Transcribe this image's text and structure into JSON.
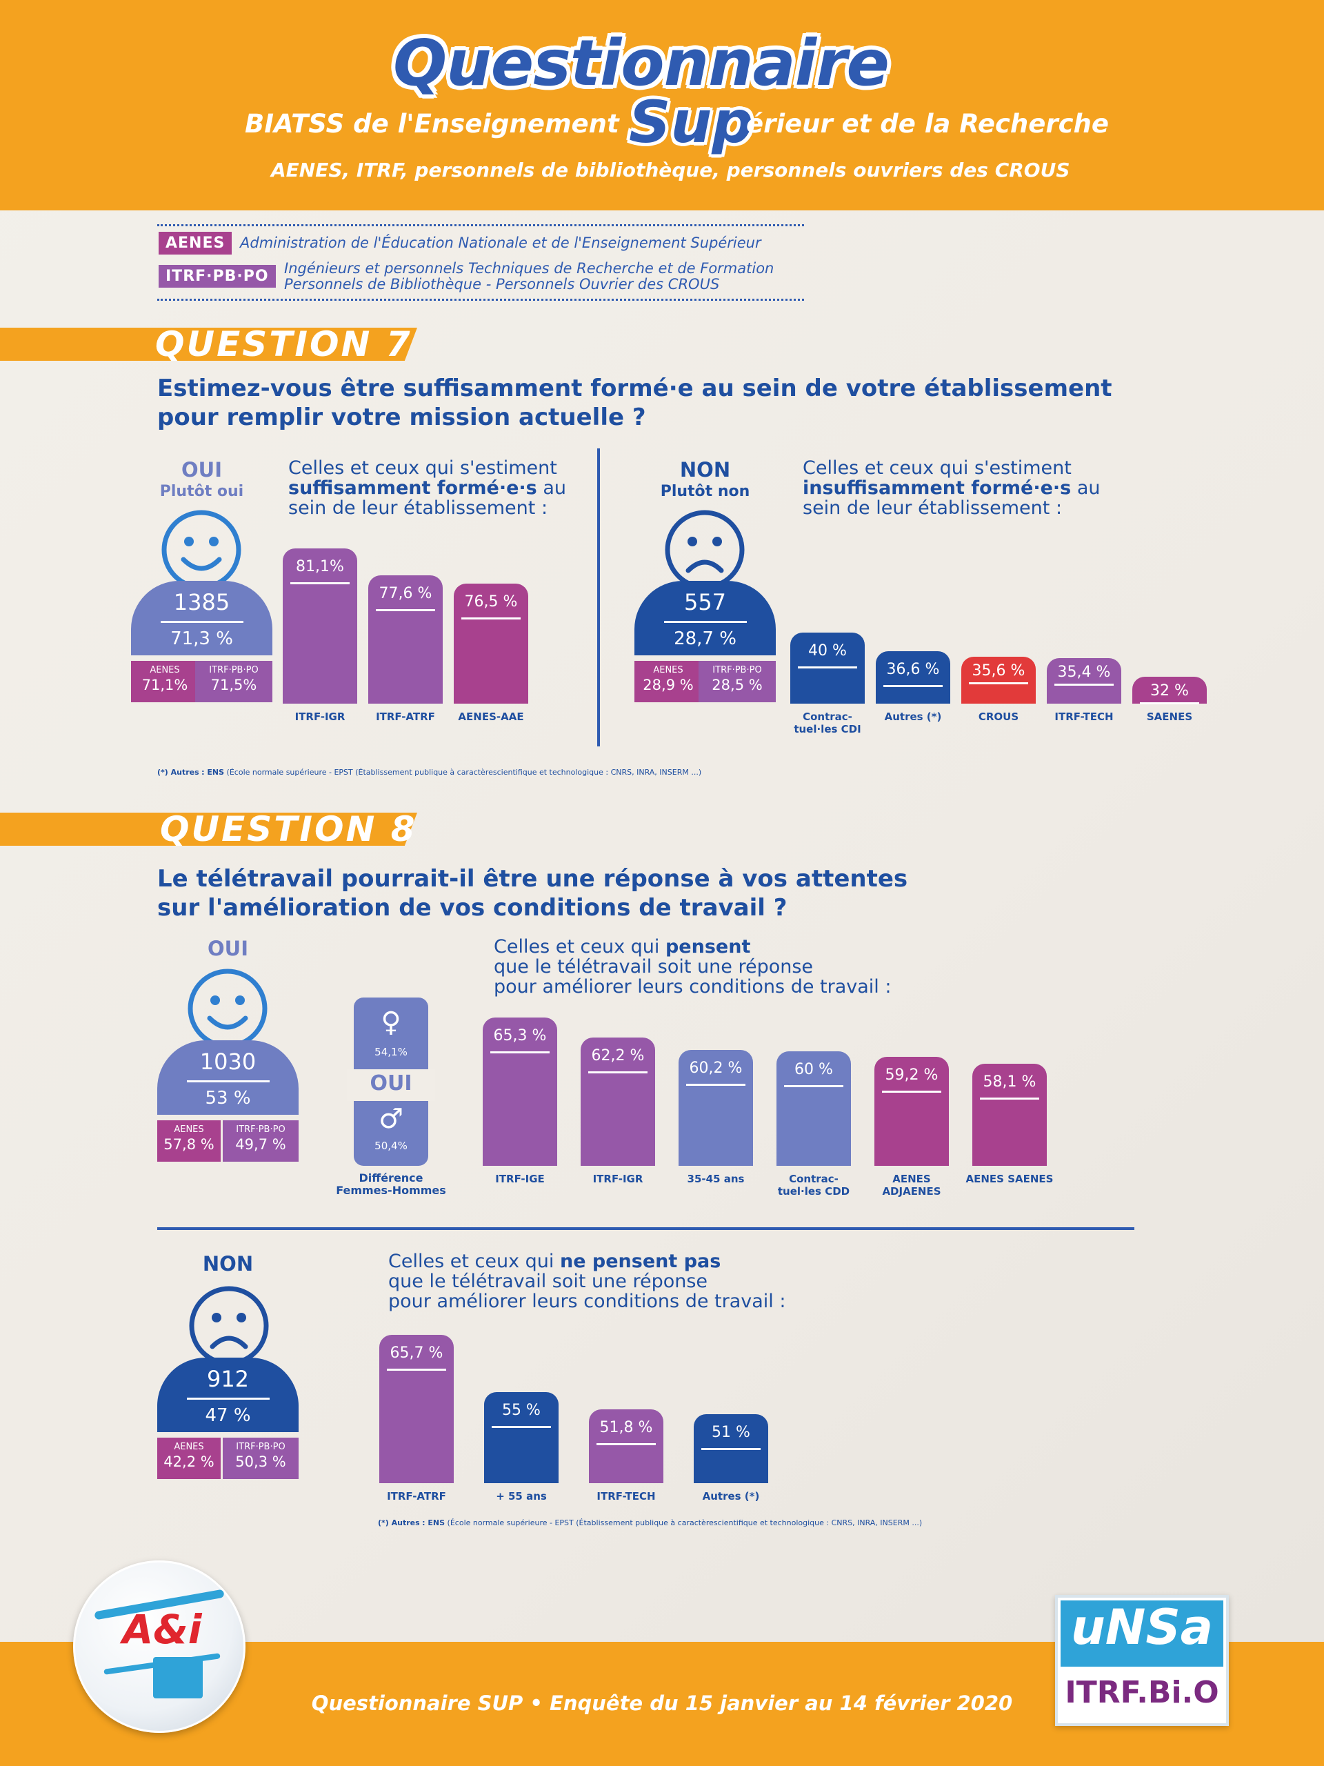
{
  "header": {
    "title": "Questionnaire",
    "subtitle_left": "BIATSS de l'Enseignement",
    "subtitle_sup": "Sup",
    "subtitle_right": "érieur et de la Recherche",
    "line3": "AENES, ITRF, personnels de bibliothèque, personnels ouvriers des CROUS"
  },
  "legend": [
    {
      "tag": "AENES",
      "text": "Administration de l'Éducation Nationale et de l'Enseignement Supérieur"
    },
    {
      "tag": "ITRF·PB·PO",
      "text1": "Ingénieurs et personnels Techniques de Recherche et de Formation",
      "text2": "Personnels de Bibliothèque - Personnels Ouvrier des CROUS"
    }
  ],
  "q7": {
    "label": "QUESTION 7",
    "question1": "Estimez-vous être suffisamment formé·e au sein de votre établissement",
    "question2": "pour remplir votre mission actuelle ?",
    "oui": {
      "head": "OUI",
      "subhead": "Plutôt oui",
      "count": "1385",
      "pct": "71,3 %",
      "sub": [
        {
          "label": "AENES",
          "value": "71,1%"
        },
        {
          "label": "ITRF·PB·PO",
          "value": "71,5%"
        }
      ],
      "desc1": "Celles et ceux qui s'estiment",
      "desc2b": "suffisamment formé·e·s",
      "desc2": " au",
      "desc3": "sein de leur établissement :"
    },
    "non": {
      "head": "NON",
      "subhead": "Plutôt non",
      "count": "557",
      "pct": "28,7 %",
      "sub": [
        {
          "label": "AENES",
          "value": "28,9 %"
        },
        {
          "label": "ITRF·PB·PO",
          "value": "28,5 %"
        }
      ],
      "desc1": "Celles et ceux qui s'estiment",
      "desc2b": "insuffisamment formé·e·s",
      "desc2": " au",
      "desc3": "sein de leur établissement :"
    },
    "note_b1": "(*) Autres",
    "note_b2": ": ENS",
    "note_rest": "(École normale supérieure - EPST (Établissement publique à caractèrescientifique et technologique : CNRS, INRA, INSERM ...)"
  },
  "q8": {
    "label": "QUESTION 8",
    "question1": "Le télétravail pourrait-il être une réponse à vos attentes",
    "question2": "sur l'amélioration de vos conditions de travail ?",
    "oui": {
      "head": "OUI",
      "count": "1030",
      "pct": "53 %",
      "sub": [
        {
          "label": "AENES",
          "value": "57,8 %"
        },
        {
          "label": "ITRF·PB·PO",
          "value": "49,7 %"
        }
      ],
      "desc1a": "Celles et ceux qui ",
      "desc1b": "pensent",
      "desc2": "que le télétravail soit une réponse",
      "desc3": "pour améliorer leurs conditions de travail :"
    },
    "gender": {
      "female_pct": "54,1%",
      "oui": "OUI",
      "male_pct": "50,4%",
      "caption1": "Différence",
      "caption2": "Femmes-Hommes"
    },
    "non": {
      "head": "NON",
      "count": "912",
      "pct": "47 %",
      "sub": [
        {
          "label": "AENES",
          "value": "42,2 %"
        },
        {
          "label": "ITRF·PB·PO",
          "value": "50,3 %"
        }
      ],
      "desc1a": "Celles et ceux qui ",
      "desc1b": "ne pensent pas",
      "desc2": "que le télétravail soit une réponse",
      "desc3": "pour améliorer leurs conditions de travail :"
    },
    "note_b1": "(*) Autres",
    "note_b2": ": ENS",
    "note_rest": "(École normale supérieure - EPST (Établissement publique à caractèrescientifique et technologique : CNRS, INRA, INSERM ...)"
  },
  "footer": {
    "text": "Questionnaire SUP • Enquête du 15 janvier au 14 février 2020",
    "logo_left": "A&i",
    "logo_right_top": "uNSa",
    "logo_right_bottom": "ITRF.Bi.O"
  },
  "colors": {
    "orange": "#f4a21f",
    "blue": "#1f4fa0",
    "purple": "#9658a8",
    "magenta": "#a8418e",
    "periwinkle": "#6f7ec2",
    "red": "#e23a3a"
  },
  "chart_data": [
    {
      "type": "bar",
      "title": "Q7 OUI",
      "categories": [
        "ITRF-IGR",
        "ITRF-ATRF",
        "AENES-AAE"
      ],
      "values": [
        81.1,
        77.6,
        76.5
      ],
      "labels": [
        "81,1%",
        "77,6 %",
        "76,5 %"
      ],
      "colors": [
        "#9658a8",
        "#9658a8",
        "#a8418e"
      ]
    },
    {
      "type": "bar",
      "title": "Q7 NON",
      "categories": [
        "Contrac-tuel·les CDI",
        "Autres (*)",
        "CROUS",
        "ITRF-TECH",
        "SAENES"
      ],
      "values": [
        40,
        36.6,
        35.6,
        35.4,
        32
      ],
      "labels": [
        "40 %",
        "36,6 %",
        "35,6 %",
        "35,4 %",
        "32 %"
      ],
      "colors": [
        "#1f4fa0",
        "#1f4fa0",
        "#e23a3a",
        "#9658a8",
        "#a8418e"
      ]
    },
    {
      "type": "bar",
      "title": "Q8 OUI",
      "categories": [
        "ITRF-IGE",
        "ITRF-IGR",
        "35-45 ans",
        "Contrac-tuel·les CDD",
        "AENES ADJAENES",
        "AENES SAENES"
      ],
      "values": [
        65.3,
        62.2,
        60.2,
        60,
        59.2,
        58.1
      ],
      "labels": [
        "65,3 %",
        "62,2 %",
        "60,2 %",
        "60 %",
        "59,2 %",
        "58,1 %"
      ],
      "colors": [
        "#9658a8",
        "#9658a8",
        "#6f7ec2",
        "#6f7ec2",
        "#a8418e",
        "#a8418e"
      ]
    },
    {
      "type": "bar",
      "title": "Q8 NON",
      "categories": [
        "ITRF-ATRF",
        "+ 55 ans",
        "ITRF-TECH",
        "Autres (*)"
      ],
      "values": [
        65.7,
        55,
        51.8,
        51
      ],
      "labels": [
        "65,7 %",
        "55 %",
        "51,8 %",
        "51 %"
      ],
      "colors": [
        "#9658a8",
        "#1f4fa0",
        "#9658a8",
        "#1f4fa0"
      ]
    }
  ]
}
